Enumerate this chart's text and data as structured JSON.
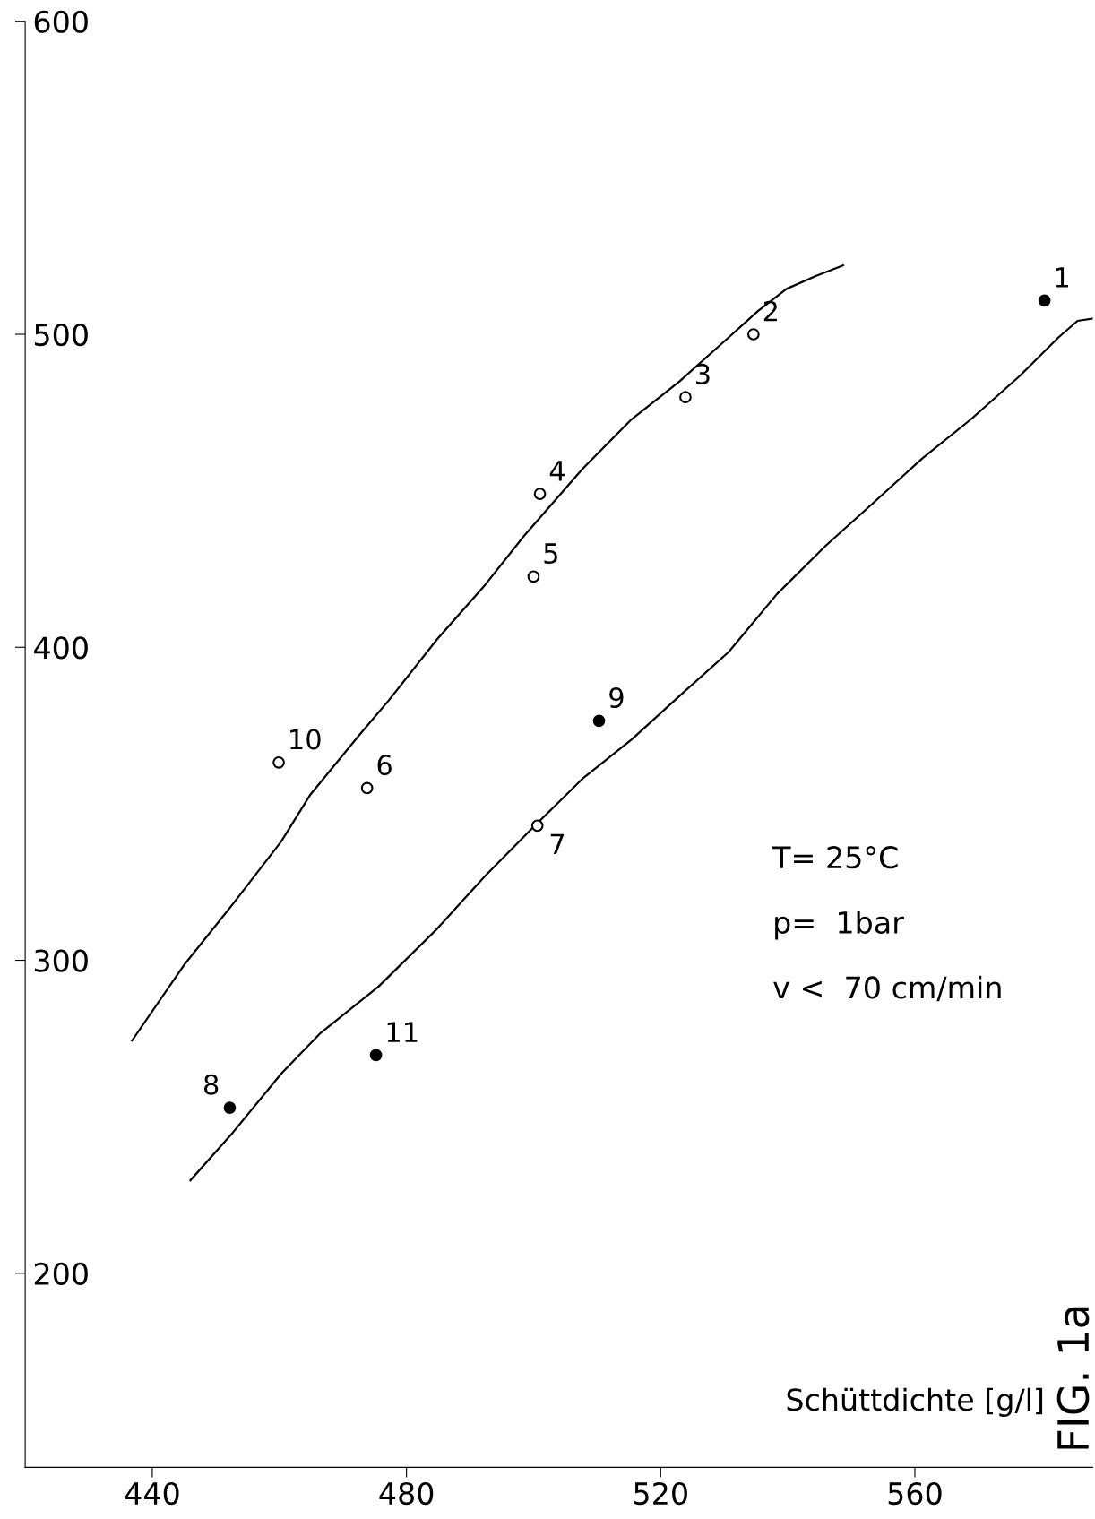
{
  "chart_data": {
    "type": "scatter",
    "title": "FIG. 1a",
    "xlabel": "Schüttdichte [g/l]",
    "xlim": [
      420,
      588
    ],
    "xticks": [
      440,
      480,
      520,
      560
    ],
    "ylim": [
      138,
      600
    ],
    "yticks": [
      200,
      300,
      400,
      500,
      600
    ],
    "grid": false,
    "legend": false,
    "series": [
      {
        "type": "line",
        "color": "#000000",
        "marker": "none",
        "line_style": "solid",
        "x": [
          436.8,
          445.0,
          452.7,
          460.3,
          464.9,
          472.6,
          477.2,
          484.8,
          492.4,
          498.5,
          507.7,
          515.4,
          523.0,
          530.7,
          535.3,
          539.8,
          544.4,
          548.7
        ],
        "values": [
          274.3,
          298.5,
          318,
          338,
          353,
          372,
          383,
          402.5,
          420,
          435.6,
          457,
          472.8,
          485,
          499,
          507.4,
          514.5,
          518.6,
          522
        ]
      },
      {
        "type": "line",
        "color": "#000000",
        "marker": "none",
        "line_style": "solid",
        "x": [
          446.0,
          452.7,
          460.3,
          466.5,
          475.6,
          484.8,
          492.4,
          500.0,
          507.7,
          515.4,
          523.0,
          530.7,
          538.3,
          546.0,
          553.6,
          561.2,
          568.8,
          576.5,
          582.6,
          585.6,
          588.0
        ],
        "values": [
          229.7,
          245,
          263.8,
          276.8,
          291.6,
          310,
          327,
          342.6,
          358,
          370.5,
          384.5,
          398.5,
          417,
          432.5,
          446.4,
          460.4,
          472.8,
          486.7,
          499,
          504.3,
          505
        ]
      },
      {
        "color": "#ffffff",
        "marker": "circle",
        "x": [
          534.6,
          523.9,
          501.0,
          500.0,
          473.8,
          500.6,
          459.9
        ],
        "values": [
          500,
          479.9,
          449,
          422.6,
          355,
          343,
          363.2
        ]
      },
      {
        "color": "#000000",
        "marker": "circle",
        "x": [
          580.4,
          452.2,
          510.3,
          475.2
        ],
        "values": [
          510.8,
          252.9,
          376.5,
          269.7
        ]
      }
    ],
    "annotations": [
      {
        "text": "1",
        "x": 580.4,
        "y": 510.8
      },
      {
        "text": "2",
        "x": 534.6,
        "y": 500
      },
      {
        "text": "3",
        "x": 523.9,
        "y": 479.9
      },
      {
        "text": "4",
        "x": 501.0,
        "y": 449
      },
      {
        "text": "5",
        "x": 500.0,
        "y": 422.6
      },
      {
        "text": "6",
        "x": 473.8,
        "y": 355
      },
      {
        "text": "7",
        "x": 500.6,
        "y": 343
      },
      {
        "text": "8",
        "x": 452.2,
        "y": 252.9
      },
      {
        "text": "9",
        "x": 510.3,
        "y": 376.5
      },
      {
        "text": "10",
        "x": 459.9,
        "y": 363.2
      },
      {
        "text": "11",
        "x": 475.2,
        "y": 269.7
      },
      "T= 25°C",
      "p=  1bar",
      "v <  70 cm/min"
    ]
  }
}
